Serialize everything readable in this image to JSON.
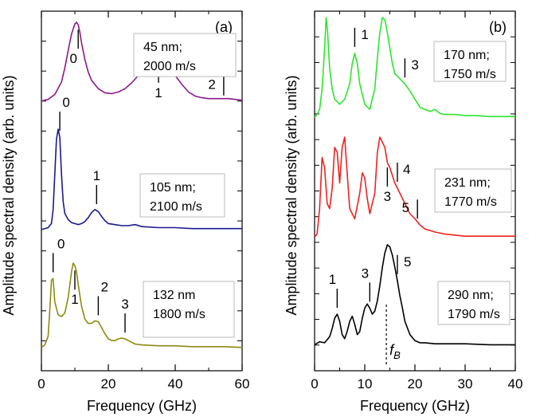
{
  "figure": {
    "ylabel": "Amplitude spectral density  (arb. units)",
    "xlabel": "Frequency (GHz)"
  },
  "chart_data": [
    {
      "type": "line",
      "panel_label": "(a)",
      "xlabel": "Frequency (GHz)",
      "ylabel": "Amplitude spectral density  (arb. units)",
      "xlim": [
        0,
        60
      ],
      "xticks": [
        "0",
        "20",
        "40",
        "60"
      ],
      "grid": false,
      "series": [
        {
          "color": "#8b1a89",
          "box_lines": [
            "45 nm;",
            "2000 m/s"
          ],
          "x": [
            0,
            2,
            4,
            6,
            7,
            8,
            9,
            10,
            10.5,
            11,
            11.5,
            12,
            13,
            14,
            15,
            17,
            19,
            21,
            23,
            25,
            27,
            29,
            31,
            33,
            34,
            35,
            36,
            37,
            38,
            40,
            42,
            44,
            46,
            48,
            50,
            52,
            54,
            56,
            58,
            60
          ],
          "y": [
            0.05,
            0.07,
            0.13,
            0.28,
            0.45,
            0.66,
            0.86,
            0.98,
            1.0,
            0.97,
            0.88,
            0.75,
            0.55,
            0.4,
            0.3,
            0.2,
            0.15,
            0.14,
            0.16,
            0.2,
            0.27,
            0.36,
            0.45,
            0.52,
            0.55,
            0.56,
            0.55,
            0.52,
            0.47,
            0.36,
            0.25,
            0.16,
            0.11,
            0.09,
            0.08,
            0.08,
            0.08,
            0.08,
            0.07,
            0.06
          ],
          "markers": [
            {
              "label": "0",
              "x": 11
            },
            {
              "label": "1",
              "x": 35
            },
            {
              "label": "2",
              "x": 54.5
            }
          ]
        },
        {
          "color": "#1a1a8c",
          "box_lines": [
            "105 nm;",
            "2100 m/s"
          ],
          "x": [
            0,
            2,
            3,
            3.5,
            4,
            4.5,
            5,
            5.5,
            6,
            6.5,
            7,
            8,
            9,
            10,
            11,
            12,
            13,
            14,
            15,
            16,
            17,
            18,
            19,
            20,
            22,
            24,
            26,
            28,
            30,
            35,
            40,
            45,
            50,
            55,
            60
          ],
          "y": [
            0.0,
            0.02,
            0.06,
            0.2,
            0.55,
            0.9,
            1.0,
            0.92,
            0.55,
            0.28,
            0.16,
            0.1,
            0.07,
            0.06,
            0.05,
            0.06,
            0.08,
            0.12,
            0.17,
            0.2,
            0.18,
            0.13,
            0.09,
            0.06,
            0.05,
            0.04,
            0.04,
            0.05,
            0.03,
            0.02,
            0.02,
            0.01,
            0.01,
            0.01,
            0.01
          ],
          "markers": [
            {
              "label": "0",
              "x": 5.5
            },
            {
              "label": "1",
              "x": 16.5
            }
          ]
        },
        {
          "color": "#8a8a14",
          "box_lines": [
            "132 nm",
            "1800 m/s"
          ],
          "x": [
            0,
            1,
            2,
            2.5,
            3,
            3.5,
            4,
            5,
            6,
            7,
            8,
            9,
            9.5,
            10,
            10.5,
            11,
            12,
            13,
            14,
            15,
            16,
            17,
            18,
            19,
            20,
            21,
            22,
            23,
            24,
            25,
            26,
            28,
            30,
            35,
            40,
            45,
            50,
            55,
            60
          ],
          "y": [
            0.02,
            0.05,
            0.15,
            0.45,
            0.8,
            0.82,
            0.55,
            0.4,
            0.38,
            0.42,
            0.6,
            0.9,
            1.0,
            0.97,
            0.9,
            0.75,
            0.5,
            0.35,
            0.3,
            0.3,
            0.33,
            0.32,
            0.25,
            0.18,
            0.12,
            0.1,
            0.1,
            0.12,
            0.13,
            0.12,
            0.1,
            0.06,
            0.05,
            0.04,
            0.04,
            0.03,
            0.03,
            0.03,
            0.02
          ],
          "markers": [
            {
              "label": "0",
              "x": 3.5
            },
            {
              "label": "1",
              "x": 10
            },
            {
              "label": "2",
              "x": 17
            },
            {
              "label": "3",
              "x": 25
            }
          ]
        }
      ]
    },
    {
      "type": "line",
      "panel_label": "(b)",
      "xlabel": "Frequency (GHz)",
      "ylabel": "Amplitude spectral density  (arb. units)",
      "xlim": [
        0,
        40
      ],
      "xticks": [
        "0",
        "10",
        "20",
        "30",
        "40"
      ],
      "grid": false,
      "fB_label": "f",
      "fB_subscript": "B",
      "fB_x": 14.3,
      "series": [
        {
          "color": "#2ee52e",
          "box_lines": [
            "170 nm;",
            "1750 m/s"
          ],
          "x": [
            0,
            0.5,
            1,
            1.5,
            2,
            2.3,
            2.6,
            3,
            3.5,
            4,
            5,
            6,
            7,
            7.5,
            8,
            8.5,
            9,
            10,
            11,
            12,
            12.5,
            13,
            13.5,
            14,
            14.5,
            15,
            15.5,
            16,
            17,
            18,
            19,
            20,
            21,
            22,
            23,
            24,
            25,
            26,
            28,
            30,
            32,
            35,
            38,
            40
          ],
          "y": [
            0.02,
            0.05,
            0.1,
            0.3,
            0.7,
            1.0,
            0.85,
            0.5,
            0.3,
            0.2,
            0.15,
            0.2,
            0.35,
            0.55,
            0.65,
            0.55,
            0.35,
            0.15,
            0.1,
            0.3,
            0.6,
            0.85,
            1.0,
            0.98,
            0.85,
            0.7,
            0.55,
            0.45,
            0.4,
            0.35,
            0.28,
            0.2,
            0.12,
            0.1,
            0.08,
            0.1,
            0.06,
            0.05,
            0.05,
            0.04,
            0.04,
            0.03,
            0.03,
            0.03
          ],
          "markers": [
            {
              "label": "1",
              "x": 8
            },
            {
              "label": "3",
              "x": 18
            }
          ]
        },
        {
          "color": "#ee2222",
          "box_lines": [
            "231 nm;",
            "1770 m/s"
          ],
          "x": [
            0,
            0.5,
            1,
            1.5,
            2,
            2.5,
            3,
            3.5,
            4,
            4.5,
            5,
            5.5,
            6,
            6.5,
            7,
            8,
            9,
            9.5,
            10,
            10.5,
            11,
            12,
            12.5,
            13,
            13.5,
            14,
            14.5,
            15,
            16,
            17,
            18,
            19,
            20,
            21,
            22,
            24,
            26,
            28,
            30,
            35,
            40
          ],
          "y": [
            0.02,
            0.05,
            0.3,
            0.8,
            0.7,
            0.35,
            0.3,
            0.5,
            0.9,
            0.85,
            0.55,
            0.9,
            1.0,
            0.65,
            0.3,
            0.2,
            0.45,
            0.65,
            0.6,
            0.4,
            0.25,
            0.45,
            0.85,
            1.0,
            0.95,
            0.9,
            0.75,
            0.7,
            0.55,
            0.45,
            0.35,
            0.25,
            0.2,
            0.14,
            0.1,
            0.07,
            0.05,
            0.04,
            0.03,
            0.03,
            0.03
          ],
          "markers": [
            {
              "label": "4",
              "x": 16.5
            },
            {
              "label": "3",
              "x": 14.5
            },
            {
              "label": "5",
              "x": 20.5
            }
          ]
        },
        {
          "color": "#000000",
          "box_lines": [
            "290 nm;",
            "1790 m/s"
          ],
          "x": [
            0,
            1,
            2,
            3,
            3.5,
            4,
            4.5,
            5,
            5.5,
            6,
            6.5,
            7,
            7.5,
            8,
            8.5,
            9,
            9.5,
            10,
            10.5,
            11,
            11.5,
            12,
            12.5,
            13,
            13.5,
            14,
            14.5,
            15,
            15.5,
            16,
            16.5,
            17,
            17.5,
            18,
            19,
            20,
            21,
            22,
            24,
            26,
            28,
            30,
            35,
            40
          ],
          "y": [
            0.02,
            0.05,
            0.04,
            0.1,
            0.18,
            0.28,
            0.32,
            0.25,
            0.12,
            0.08,
            0.15,
            0.25,
            0.3,
            0.22,
            0.12,
            0.15,
            0.28,
            0.38,
            0.42,
            0.38,
            0.32,
            0.35,
            0.45,
            0.6,
            0.78,
            0.92,
            1.0,
            0.98,
            0.9,
            0.78,
            0.65,
            0.5,
            0.38,
            0.25,
            0.12,
            0.06,
            0.04,
            0.04,
            0.03,
            0.03,
            0.03,
            0.03,
            0.02,
            0.02
          ],
          "markers": [
            {
              "label": "1",
              "x": 4.5
            },
            {
              "label": "3",
              "x": 11
            },
            {
              "label": "5",
              "x": 16.5
            }
          ]
        }
      ]
    }
  ]
}
